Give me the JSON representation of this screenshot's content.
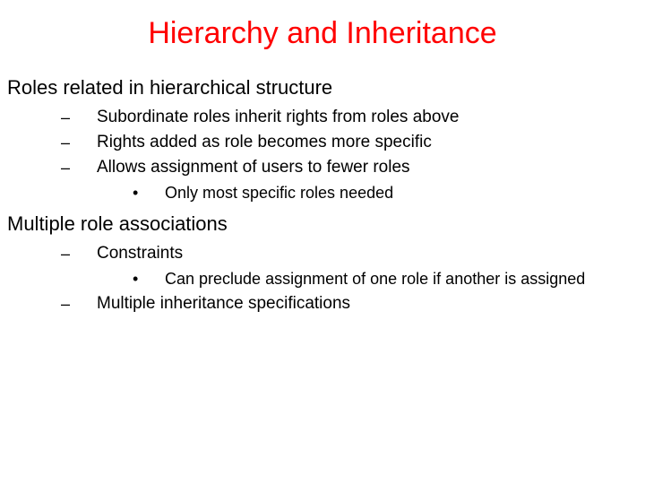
{
  "colors": {
    "title": "#ff0000",
    "body": "#000000",
    "background": "#ffffff"
  },
  "title": "Hierarchy and Inheritance",
  "sections": [
    {
      "heading": "Roles related in hierarchical structure",
      "items": [
        {
          "level": 2,
          "marker": "–",
          "text": "Subordinate roles inherit rights from roles above"
        },
        {
          "level": 2,
          "marker": "–",
          "text": "Rights added as role becomes more specific"
        },
        {
          "level": 2,
          "marker": "–",
          "text": "Allows assignment of users to fewer roles"
        },
        {
          "level": 3,
          "marker": "•",
          "text": "Only most specific roles needed"
        }
      ]
    },
    {
      "heading": "Multiple role associations",
      "items": [
        {
          "level": 2,
          "marker": "–",
          "text": "Constraints"
        },
        {
          "level": 3,
          "marker": "•",
          "text": "Can preclude assignment of one role if another is assigned"
        },
        {
          "level": 2,
          "marker": "–",
          "text": "Multiple inheritance specifications"
        }
      ]
    }
  ]
}
